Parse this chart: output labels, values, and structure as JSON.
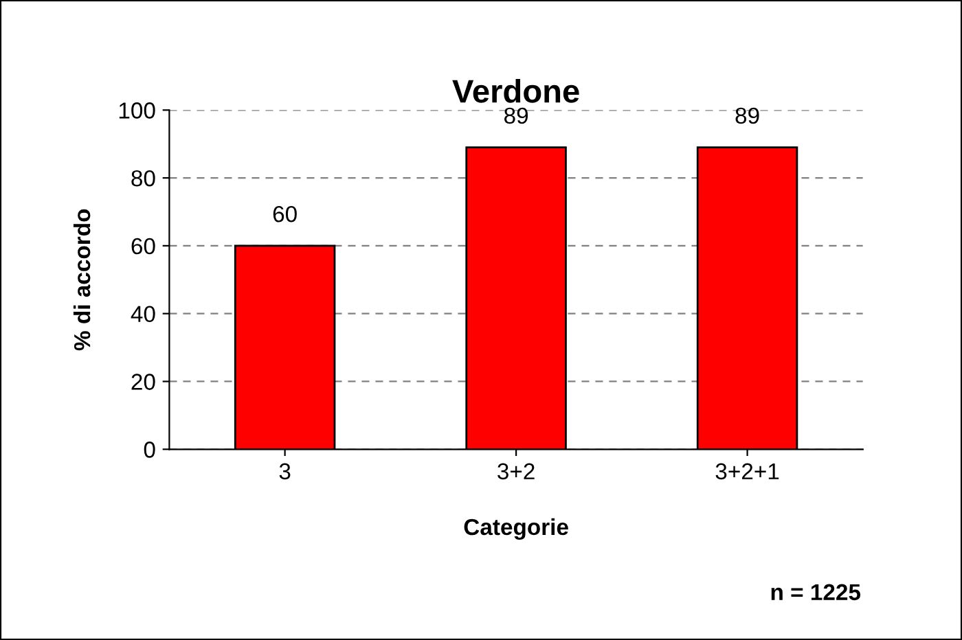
{
  "chart_data": {
    "type": "bar",
    "title": "Verdone",
    "xlabel": "Categorie",
    "ylabel": "% di accordo",
    "categories": [
      "3",
      "3+2",
      "3+2+1"
    ],
    "values": [
      60,
      89,
      89
    ],
    "color": "#ff0000",
    "ylim": [
      0,
      100
    ],
    "yticks": [
      0,
      20,
      40,
      60,
      80,
      100
    ],
    "grid": "y",
    "data_labels": true,
    "annotations": [
      "n = 1225"
    ]
  }
}
